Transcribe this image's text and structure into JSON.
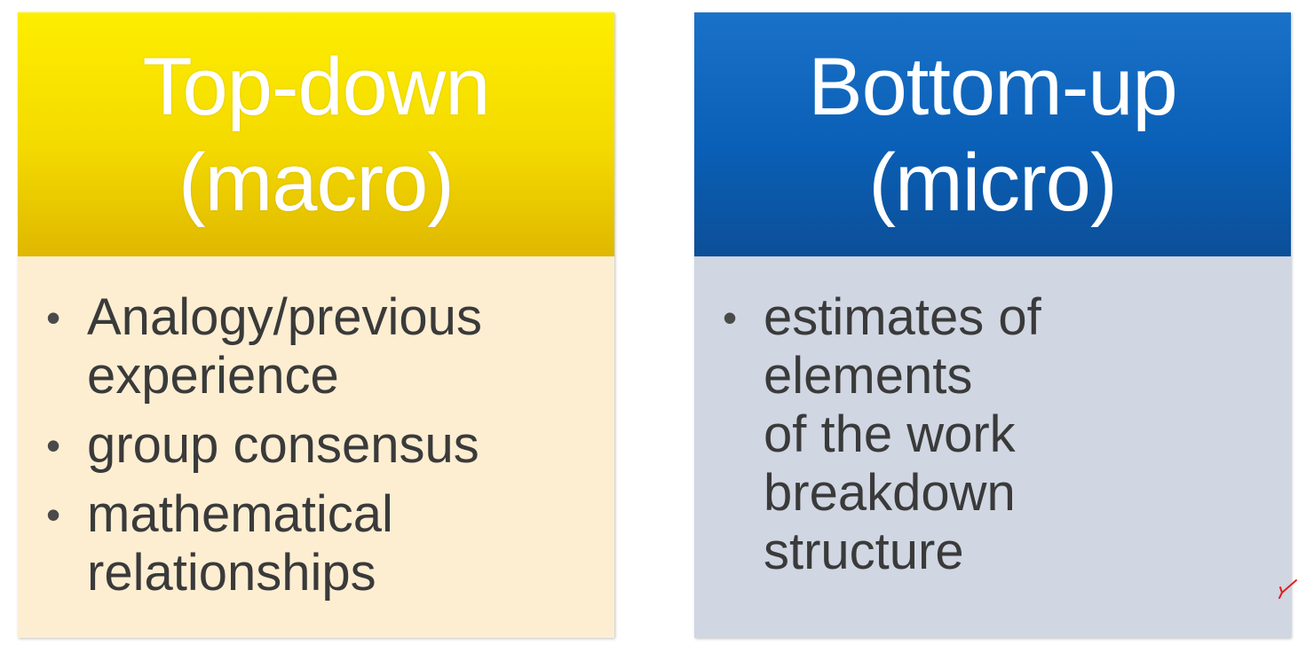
{
  "left_panel": {
    "title_line1": "Top-down",
    "title_line2": "(macro)",
    "header_color": "#f4da00",
    "body_color": "#fdeed2",
    "items": [
      {
        "text": "Analogy/previous\nexperience"
      },
      {
        "text": "group consensus"
      },
      {
        "text": "mathematical\nrelationships"
      }
    ]
  },
  "right_panel": {
    "title_line1": "Bottom-up",
    "title_line2": "(micro)",
    "header_color": "#0a5fb6",
    "body_color": "#d0d6e2",
    "items": [
      {
        "text": "estimates of\nelements\nof the work\nbreakdown\nstructure"
      }
    ]
  },
  "annotation_color": "#e02020"
}
